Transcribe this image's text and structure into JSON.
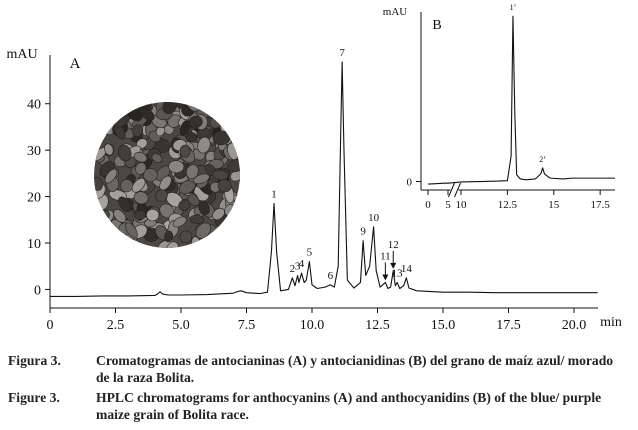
{
  "chart_data": [
    {
      "type": "line",
      "panel": "A",
      "y_label": "mAU",
      "x_label": "min",
      "color": "#111111",
      "xlim": [
        0,
        20.9
      ],
      "ylim": [
        -4,
        50.5
      ],
      "xticks": [
        0,
        2.5,
        {
          "value": 5,
          "label": "5.0"
        },
        7.5,
        {
          "value": 10,
          "label": "10.0"
        },
        12.5,
        {
          "value": 15,
          "label": "15.0"
        },
        17.5,
        {
          "value": 20,
          "label": "20.0"
        }
      ],
      "yticks": [
        0,
        10,
        20,
        30,
        40
      ],
      "x": [
        0,
        1,
        2,
        3,
        4,
        4.1,
        4.2,
        4.3,
        4.5,
        5,
        6,
        7,
        7.2,
        7.3,
        7.5,
        8,
        8.3,
        8.45,
        8.55,
        8.65,
        8.8,
        9.1,
        9.25,
        9.35,
        9.45,
        9.5,
        9.6,
        9.7,
        9.78,
        9.9,
        10.0,
        10.2,
        10.5,
        10.7,
        10.85,
        11.0,
        11.1,
        11.15,
        11.22,
        11.35,
        11.6,
        11.85,
        11.95,
        12.05,
        12.2,
        12.35,
        12.45,
        12.6,
        12.8,
        12.9,
        13.0,
        13.1,
        13.18,
        13.25,
        13.35,
        13.5,
        13.6,
        13.7,
        14,
        15,
        16,
        17,
        18,
        19,
        20,
        20.9
      ],
      "values": [
        -1.5,
        -1.5,
        -1.4,
        -1.4,
        -1.3,
        -1.0,
        -0.5,
        -1.0,
        -1.2,
        -1.2,
        -1.1,
        -0.8,
        -0.4,
        -0.3,
        -0.7,
        -0.9,
        -0.6,
        8,
        18.5,
        8,
        -0.3,
        0.0,
        2.5,
        0.8,
        3.0,
        1.5,
        3.5,
        1.5,
        2,
        6,
        1,
        0.2,
        0.5,
        1.0,
        0.5,
        5,
        35,
        49,
        30,
        2,
        0.3,
        1.5,
        10.5,
        3,
        5,
        13.5,
        4,
        0.5,
        1.5,
        0.2,
        0.5,
        4,
        0.8,
        1.5,
        0.2,
        0.8,
        2.5,
        0.3,
        -0.3,
        -0.6,
        -0.6,
        -0.7,
        -0.7,
        -0.7,
        -0.7,
        -0.7
      ],
      "peaks": [
        {
          "label": "1",
          "x": 8.55,
          "y": 18.5
        },
        {
          "label": "2",
          "x": 9.25,
          "y": 2.5
        },
        {
          "label": "3",
          "x": 9.45,
          "y": 3.0
        },
        {
          "label": "4",
          "x": 9.6,
          "y": 3.5
        },
        {
          "label": "5",
          "x": 9.9,
          "y": 6
        },
        {
          "label": "6",
          "x": 10.7,
          "y": 1.0
        },
        {
          "label": "7",
          "x": 11.15,
          "y": 49
        },
        {
          "label": "9",
          "x": 11.95,
          "y": 10.5
        },
        {
          "label": "10",
          "x": 12.35,
          "y": 13.5
        },
        {
          "label": "11",
          "x": 12.8,
          "y": 1.5,
          "arrow": true
        },
        {
          "label": "12",
          "x": 13.1,
          "y": 4,
          "arrow": true
        },
        {
          "label": "13",
          "x": 13.25,
          "y": 1.5
        },
        {
          "label": "14",
          "x": 13.6,
          "y": 2.5
        }
      ]
    },
    {
      "type": "line",
      "panel": "B",
      "y_label": "mAU",
      "color": "#111111",
      "xlim": [
        0,
        18.3
      ],
      "xbreak": [
        5,
        10
      ],
      "ylim": [
        -1,
        20
      ],
      "xticks": [
        0,
        5,
        10,
        12.5,
        15,
        17.5
      ],
      "yticks": [
        0
      ],
      "x": [
        0,
        2,
        4,
        5,
        10,
        11,
        12,
        12.5,
        12.7,
        12.8,
        12.9,
        13.0,
        13.2,
        13.5,
        14,
        14.3,
        14.4,
        14.5,
        14.8,
        15.5,
        16,
        17,
        18.3
      ],
      "values": [
        -0.3,
        -0.25,
        -0.2,
        -0.2,
        -0.05,
        0,
        0.05,
        0.1,
        3,
        19.5,
        8,
        0.8,
        0.3,
        0.2,
        0.3,
        0.9,
        1.6,
        0.9,
        0.4,
        0.3,
        0.4,
        0.4,
        0.4
      ],
      "peaks": [
        {
          "label": "1’",
          "x": 12.8,
          "y": 19.5
        },
        {
          "label": "2’",
          "x": 14.4,
          "y": 1.6
        }
      ]
    }
  ],
  "caption": [
    {
      "label": "Figura 3.",
      "text": "Cromatogramas de antocianinas (A) y antocianidinas (B) del grano de maíz azul/ morado de la raza Bolita."
    },
    {
      "label": "Figure 3.",
      "text": "HPLC chromatograms for anthocyanins (A) and anthocyanidins (B) of the blue/ purple maize grain of Bolita race."
    }
  ]
}
